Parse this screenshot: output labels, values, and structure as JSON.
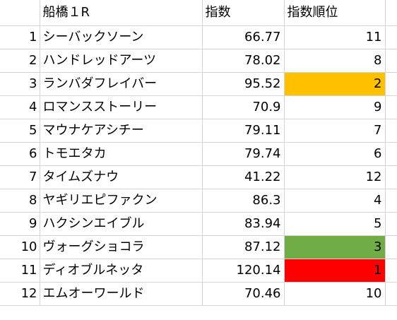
{
  "sheet": {
    "header": {
      "race": "船橋１R",
      "index": "指数",
      "rank": "指数順位"
    },
    "rows": [
      {
        "no": "1",
        "name": "シーバックソーン",
        "index": "66.77",
        "rank": "11",
        "fill": ""
      },
      {
        "no": "2",
        "name": "ハンドレッドアーツ",
        "index": "78.02",
        "rank": "8",
        "fill": ""
      },
      {
        "no": "3",
        "name": "ランバダフレイバー",
        "index": "95.52",
        "rank": "2",
        "fill": "#ffc000"
      },
      {
        "no": "4",
        "name": "ロマンスストーリー",
        "index": "70.9",
        "rank": "9",
        "fill": ""
      },
      {
        "no": "5",
        "name": "マウナケアシチー",
        "index": "79.11",
        "rank": "7",
        "fill": ""
      },
      {
        "no": "6",
        "name": "トモエタカ",
        "index": "79.74",
        "rank": "6",
        "fill": ""
      },
      {
        "no": "7",
        "name": "タイムズナウ",
        "index": "41.22",
        "rank": "12",
        "fill": ""
      },
      {
        "no": "8",
        "name": "ヤギリエピファクン",
        "index": "86.3",
        "rank": "4",
        "fill": ""
      },
      {
        "no": "9",
        "name": "ハクシンエイブル",
        "index": "83.94",
        "rank": "5",
        "fill": ""
      },
      {
        "no": "10",
        "name": "ヴォーグショコラ",
        "index": "87.12",
        "rank": "3",
        "fill": "#70ad47"
      },
      {
        "no": "11",
        "name": "ディオブルネッタ",
        "index": "120.14",
        "rank": "1",
        "fill": "#ff0000"
      },
      {
        "no": "12",
        "name": "エムオーワールド",
        "index": "70.46",
        "rank": "10",
        "fill": ""
      }
    ]
  }
}
